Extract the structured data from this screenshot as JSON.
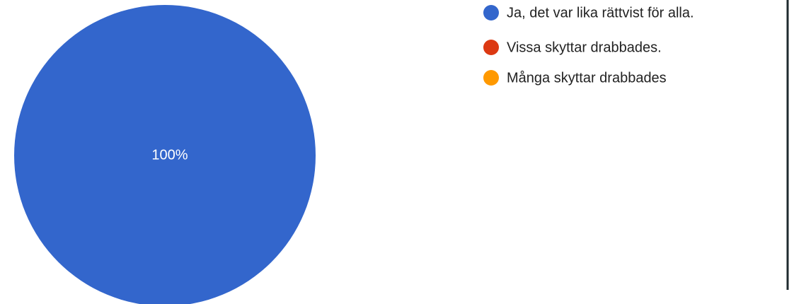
{
  "chart_data": {
    "type": "pie",
    "categories": [
      "Ja, det var lika rättvist för alla.",
      "Vissa skyttar drabbades.",
      "Många skyttar drabbades"
    ],
    "values": [
      100,
      0,
      0
    ],
    "value_labels": [
      "100%",
      null,
      null
    ],
    "colors": [
      "#3366cc",
      "#dc3912",
      "#ff9900"
    ],
    "legend": "right"
  }
}
